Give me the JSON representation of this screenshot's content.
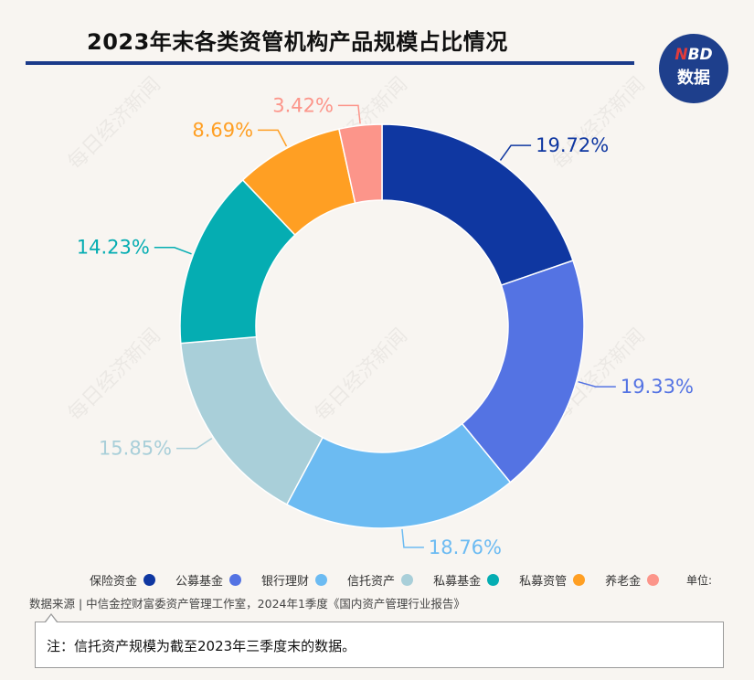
{
  "title": "2023年末各类资管机构产品规模占比情况",
  "logo": {
    "line1_accent": "N",
    "line1_rest": "BD",
    "line2": "数据"
  },
  "watermark": "每日经济新闻",
  "unit_label": "单位:",
  "source": "数据来源 | 中信金控财富委资产管理工作室，2024年1季度《国内资产管理行业报告》",
  "note": "注：信托资产规模为截至2023年三季度末的数据。",
  "chart_data": {
    "type": "pie",
    "donut": true,
    "title": "2023年末各类资管机构产品规模占比情况",
    "unit": "%",
    "legend_position": "bottom",
    "categories": [
      "保险资金",
      "公募基金",
      "银行理财",
      "信托资产",
      "私募基金",
      "私募资管",
      "养老金"
    ],
    "values": [
      19.72,
      19.33,
      18.76,
      15.85,
      14.23,
      8.69,
      3.42
    ],
    "labels": [
      "19.72%",
      "19.33%",
      "18.76%",
      "15.85%",
      "14.23%",
      "8.69%",
      "3.42%"
    ],
    "colors": [
      "#0f37a1",
      "#5473e3",
      "#6cbbf2",
      "#a9cfd9",
      "#05adb2",
      "#ff9f23",
      "#fc958a"
    ]
  }
}
